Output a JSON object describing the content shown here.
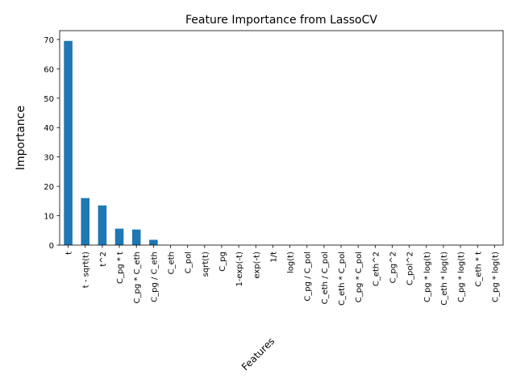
{
  "chart_data": {
    "type": "bar",
    "title": "Feature Importance from LassoCV",
    "xlabel": "Features",
    "ylabel": "Importance",
    "ylim": [
      0,
      73
    ],
    "yticks": [
      0,
      10,
      20,
      30,
      40,
      50,
      60,
      70
    ],
    "grid": false,
    "bar_color": "#1f77b4",
    "categories": [
      "t",
      "t - sqrt(t)",
      "t^2",
      "C_pg * t",
      "C_pg * C_eth",
      "C_pg / C_eth",
      "C_eth",
      "C_pol",
      "sqrt(t)",
      "C_pg",
      "1-exp(-t)",
      "exp(-t)",
      "1/t",
      "log(t)",
      "C_pg / C_pol",
      "C_eth / C_pol",
      "C_eth * C_pol",
      "C_pg * C_pol",
      "C_eth^2",
      "C_pg^2",
      "C_pol^2",
      "C_pg * log(t)",
      "C_eth * log(t)",
      "C_pg * log(t)",
      "C_eth * t",
      "C_pg * log(t)"
    ],
    "values": [
      69.5,
      16.0,
      13.5,
      5.6,
      5.3,
      1.8,
      0,
      0,
      0,
      0,
      0,
      0,
      0,
      0,
      0,
      0,
      0,
      0,
      0,
      0,
      0,
      0,
      0,
      0,
      0,
      0
    ]
  }
}
